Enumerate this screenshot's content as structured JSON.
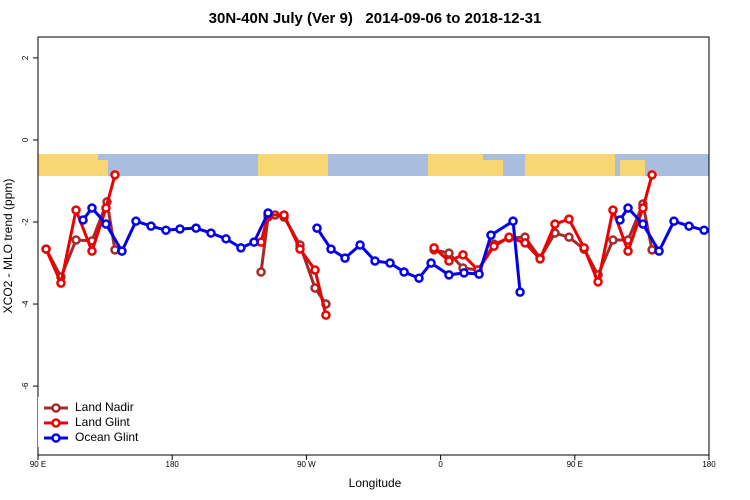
{
  "chart_data": {
    "type": "line",
    "title": "30N-40N July (Ver 9)   2014-09-06 to 2018-12-31",
    "x_label": "Longitude",
    "y_label": "XCO2 - MLO trend (ppm)",
    "xlim": [
      90,
      540
    ],
    "ylim": [
      -7.68,
      2.51
    ],
    "xticks": [
      {
        "value": 90,
        "label": "90 E"
      },
      180,
      {
        "value": 270,
        "label": "90 W"
      },
      {
        "value": 360,
        "label": "0"
      },
      {
        "value": 450,
        "label": "90 E"
      },
      {
        "value": 540,
        "label": "180"
      }
    ],
    "yticks": [
      -6,
      -4,
      -2,
      0,
      2
    ],
    "legend": "bottom-left",
    "series": [
      {
        "name": "Land Nadir",
        "color": "#a52a2a",
        "x": [
          95.4,
          105.4,
          115.5,
          126.2,
          136.3,
          141.6,
          190,
          239.6,
          244.3,
          249.0,
          255.0,
          265.7,
          275.8,
          283.1,
          320,
          355.6,
          365.6,
          375.0,
          385.1,
          395.8,
          405.9,
          416.6,
          426.7,
          436.7,
          446.1,
          456.2,
          465.6,
          475.6,
          485.7,
          495.7,
          501.8
        ],
        "values": [
          -2.66,
          -3.34,
          -2.44,
          -2.46,
          -1.51,
          -2.68,
          null,
          -3.22,
          -1.88,
          -1.83,
          -1.88,
          -2.56,
          -3.61,
          -4.0,
          null,
          -2.68,
          -2.76,
          -3.12,
          -3.17,
          -2.54,
          -2.39,
          -2.37,
          -2.88,
          -2.27,
          -2.37,
          -2.66,
          -3.29,
          -2.44,
          -2.44,
          -1.56,
          -2.68
        ]
      },
      {
        "name": "Land Glint",
        "color": "#ee0000",
        "x": [
          95.4,
          105.4,
          115.5,
          126.2,
          135.6,
          141.6,
          190,
          239.6,
          244.3,
          255.0,
          265.7,
          275.8,
          283.1,
          320,
          355.6,
          365.6,
          375.0,
          385.1,
          395.8,
          405.9,
          416.6,
          426.7,
          436.7,
          446.1,
          456.2,
          465.6,
          475.6,
          485.7,
          495.7,
          501.8
        ],
        "values": [
          -2.66,
          -3.49,
          -1.71,
          -2.71,
          -1.66,
          -0.85,
          null,
          -2.49,
          -1.83,
          -1.83,
          -2.66,
          -3.17,
          -4.27,
          null,
          -2.63,
          -2.95,
          -2.8,
          -3.17,
          -2.59,
          -2.37,
          -2.51,
          -2.9,
          -2.05,
          -1.93,
          -2.63,
          -3.46,
          -1.71,
          -2.71,
          -1.66,
          -0.85
        ]
      },
      {
        "name": "Ocean Glint",
        "color": "#0000ee",
        "x": [
          120.2,
          126.2,
          135.6,
          146.3,
          155.7,
          165.8,
          175.8,
          185.2,
          196.0,
          206.0,
          216.1,
          226.1,
          234.9,
          244.3,
          265,
          277.1,
          286.5,
          295.9,
          306.0,
          316.0,
          326.1,
          335.5,
          345.5,
          353.6,
          365.6,
          375.7,
          385.8,
          393.8,
          408.6,
          413.3,
          460,
          480.3,
          485.7,
          495.7,
          506.5,
          516.5,
          526.6,
          536.7
        ],
        "values": [
          -1.95,
          -1.66,
          -2.05,
          -2.71,
          -1.98,
          -2.1,
          -2.2,
          -2.17,
          -2.15,
          -2.27,
          -2.41,
          -2.63,
          -2.49,
          -1.78,
          null,
          -2.15,
          -2.66,
          -2.88,
          -2.56,
          -2.95,
          -3.0,
          -3.22,
          -3.37,
          -3.0,
          -3.29,
          -3.24,
          -3.27,
          -2.32,
          -1.98,
          -3.71,
          null,
          -1.95,
          -1.66,
          -2.05,
          -2.71,
          -1.98,
          -2.1,
          -2.2
        ]
      }
    ]
  }
}
